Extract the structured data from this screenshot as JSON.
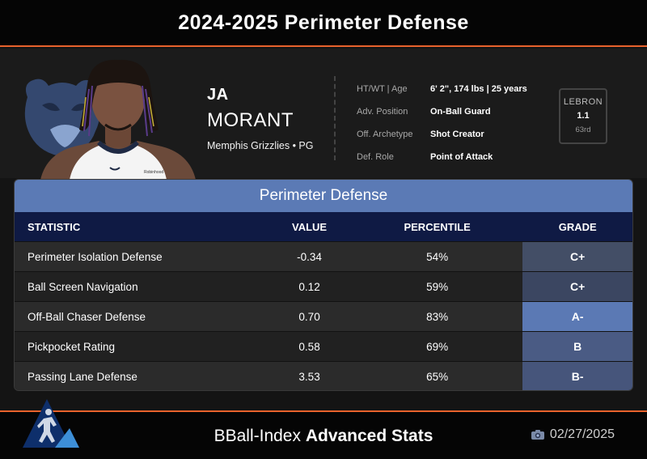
{
  "header": {
    "title": "2024-2025 Perimeter Defense"
  },
  "player": {
    "first_name": "JA",
    "last_name": "MORANT",
    "team_line": "Memphis Grizzlies • PG",
    "info": [
      {
        "label": "HT/WT | Age",
        "value": "6' 2\", 174 lbs | 25 years"
      },
      {
        "label": "Adv. Position",
        "value": "On-Ball Guard"
      },
      {
        "label": "Off. Archetype",
        "value": "Shot Creator"
      },
      {
        "label": "Def. Role",
        "value": "Point of Attack"
      }
    ],
    "lebron": {
      "label": "LEBRON",
      "value": "1.1",
      "rank": "63rd"
    },
    "jersey_text": "Robinhood"
  },
  "table": {
    "title": "Perimeter Defense",
    "columns": {
      "statistic": "STATISTIC",
      "value": "VALUE",
      "percentile": "PERCENTILE",
      "grade": "GRADE"
    },
    "rows": [
      {
        "statistic": "Perimeter Isolation Defense",
        "value": "-0.34",
        "percentile": "54%",
        "grade": "C+",
        "grade_color": "#434e66"
      },
      {
        "statistic": "Ball Screen Navigation",
        "value": "0.12",
        "percentile": "59%",
        "grade": "C+",
        "grade_color": "#3b4661"
      },
      {
        "statistic": "Off-Ball Chaser Defense",
        "value": "0.70",
        "percentile": "83%",
        "grade": "A-",
        "grade_color": "#5b79b4"
      },
      {
        "statistic": "Pickpocket Rating",
        "value": "0.58",
        "percentile": "69%",
        "grade": "B",
        "grade_color": "#4a5b84"
      },
      {
        "statistic": "Passing Lane Defense",
        "value": "3.53",
        "percentile": "65%",
        "grade": "B-",
        "grade_color": "#46557b"
      }
    ]
  },
  "footer": {
    "brand_prefix": "BBall-Index",
    "brand_bold": "Advanced Stats",
    "date": "02/27/2025"
  },
  "colors": {
    "accent": "#e8622c",
    "table_title_bg": "#5b7ab5",
    "table_head_bg": "#0f1a44"
  }
}
